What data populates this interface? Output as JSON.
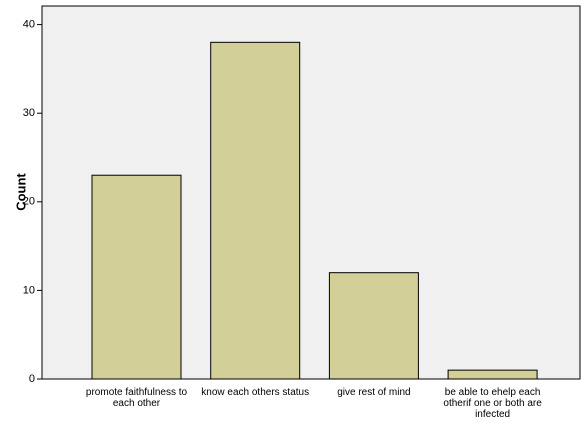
{
  "chart_data": {
    "type": "bar",
    "y_label": "Count",
    "categories": [
      "promote faithfulness to each other",
      "know  each others status",
      "give rest of mind",
      "be able to ehelp each otherif one or both are infected"
    ],
    "values": [
      23,
      38,
      12,
      1
    ],
    "color": "#d3cf98",
    "ylim": [
      0,
      42.1
    ],
    "yticks": [
      0,
      10,
      20,
      30,
      40
    ]
  }
}
